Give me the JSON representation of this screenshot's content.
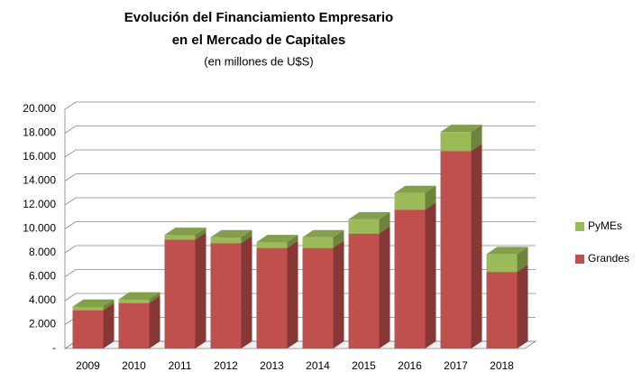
{
  "chart_data": {
    "type": "bar3d_stacked",
    "title": [
      "Evolución del Financiamiento Empresario",
      "en el Mercado de Capitales"
    ],
    "subtitle": "(en millones de U$S)",
    "categories": [
      "2009",
      "2010",
      "2011",
      "2012",
      "2013",
      "2014",
      "2015",
      "2016",
      "2017",
      "2018"
    ],
    "series": [
      {
        "name": "Grandes",
        "color": "#c0504d",
        "values": [
          3200,
          3800,
          9100,
          8800,
          8400,
          8400,
          9600,
          11600,
          16500,
          6400
        ]
      },
      {
        "name": "PyMEs",
        "color": "#9bbb59",
        "values": [
          300,
          300,
          400,
          500,
          500,
          900,
          1200,
          1400,
          1600,
          1500
        ]
      }
    ],
    "ylim": [
      0,
      20000
    ],
    "yticks": [
      {
        "value": 0,
        "label": "-"
      },
      {
        "value": 2000,
        "label": "2.000"
      },
      {
        "value": 4000,
        "label": "4.000"
      },
      {
        "value": 6000,
        "label": "6.000"
      },
      {
        "value": 8000,
        "label": "8.000"
      },
      {
        "value": 10000,
        "label": "10.000"
      },
      {
        "value": 12000,
        "label": "12.000"
      },
      {
        "value": 14000,
        "label": "14.000"
      },
      {
        "value": 16000,
        "label": "16.000"
      },
      {
        "value": 18000,
        "label": "18.000"
      },
      {
        "value": 20000,
        "label": "20.000"
      }
    ],
    "grid": true,
    "legend": "right"
  }
}
